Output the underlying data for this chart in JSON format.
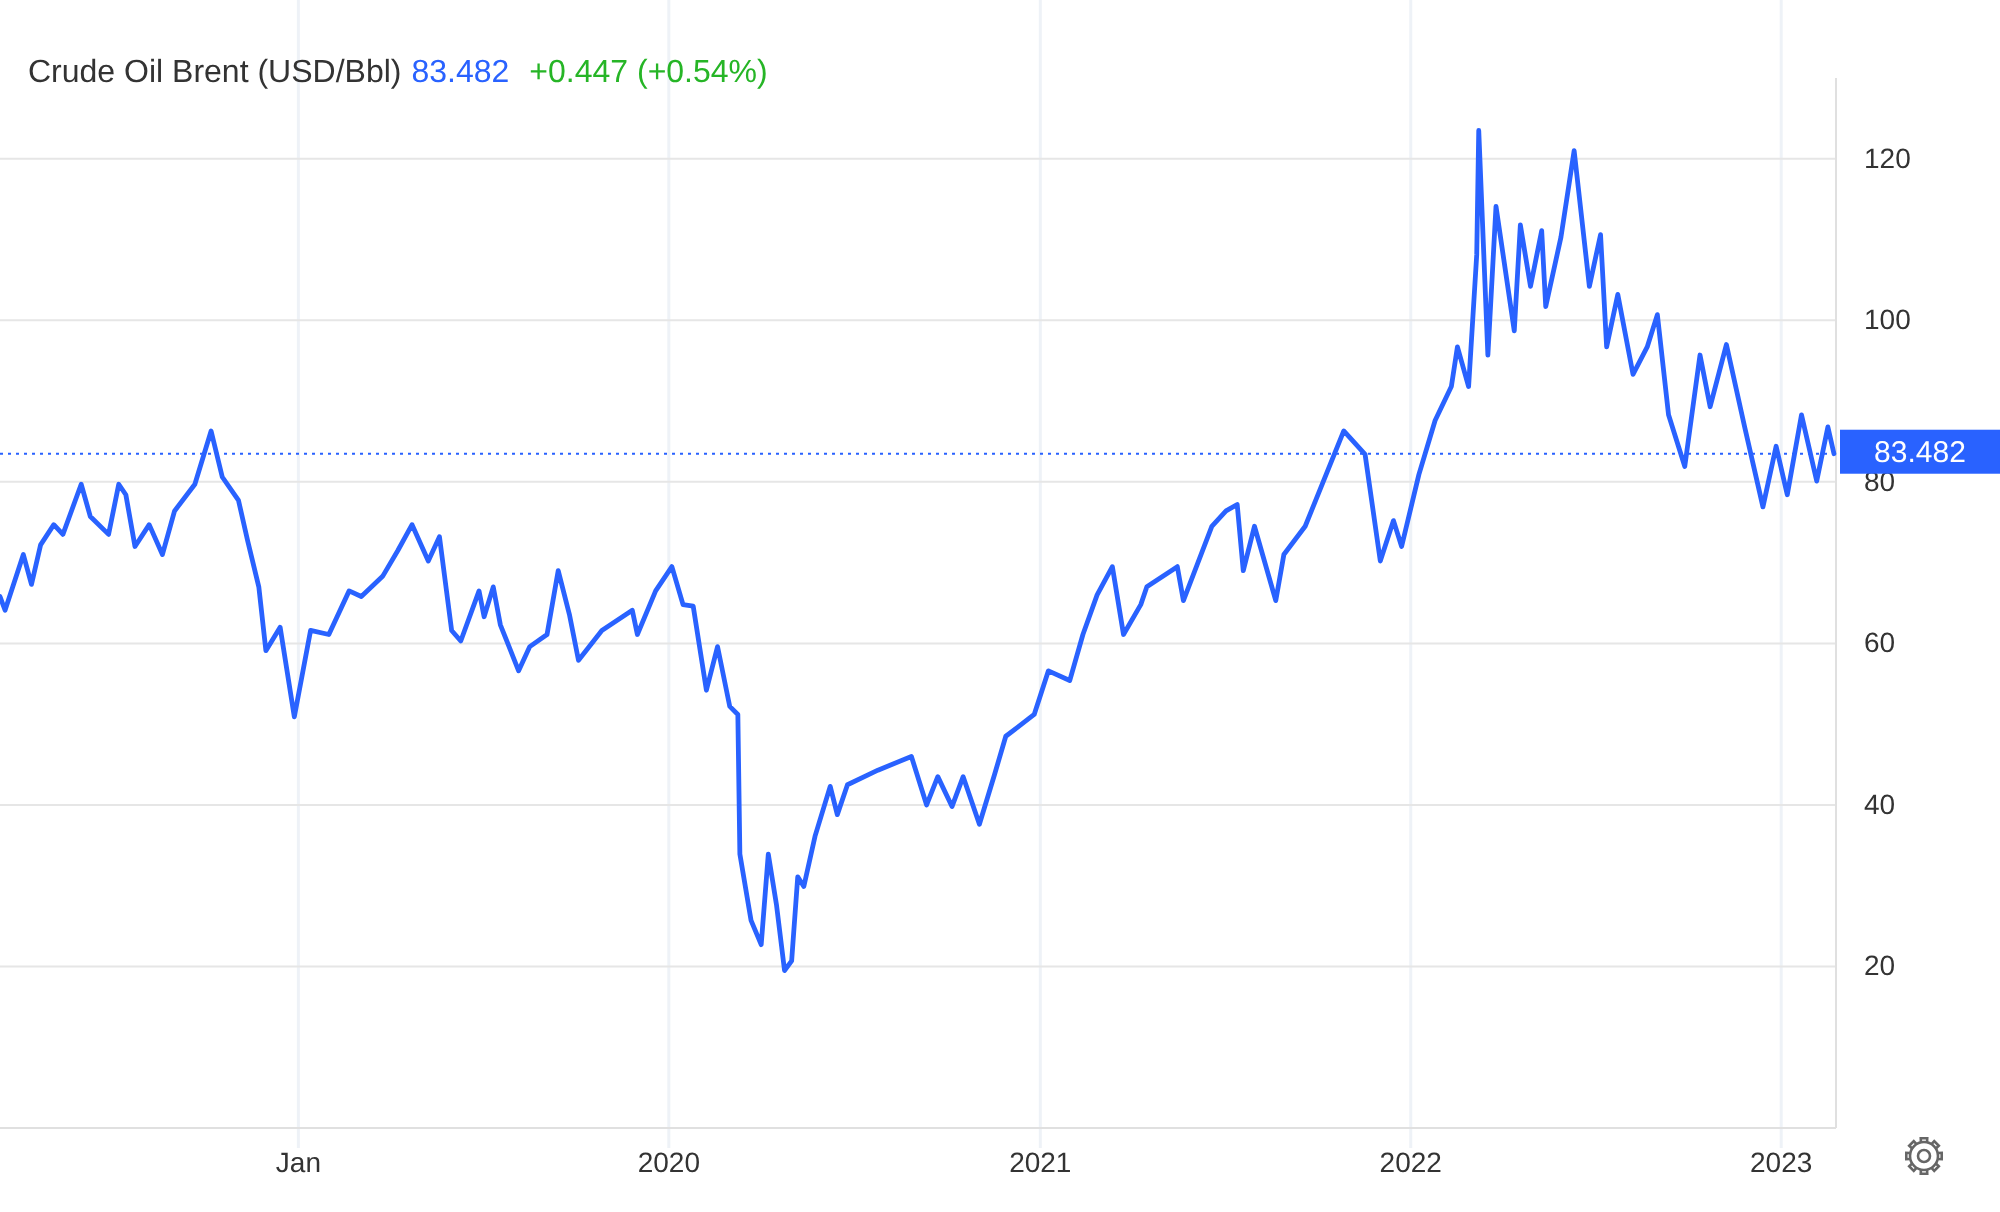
{
  "chart_data": {
    "type": "line",
    "title": "Crude Oil Brent (USD/Bbl)",
    "annotations": [
      "83.482",
      "+0.447 (+0.54%)"
    ],
    "x": [
      "2018-03-13",
      "2018-03-18",
      "2018-04-05",
      "2018-04-13",
      "2018-04-22",
      "2018-05-05",
      "2018-05-14",
      "2018-06-01",
      "2018-06-10",
      "2018-06-28",
      "2018-07-08",
      "2018-07-15",
      "2018-07-24",
      "2018-08-07",
      "2018-08-20",
      "2018-09-01",
      "2018-09-21",
      "2018-10-07",
      "2018-10-18",
      "2018-11-03",
      "2018-11-12",
      "2018-11-23",
      "2018-11-30",
      "2018-12-14",
      "2018-12-28",
      "2019-01-13",
      "2019-01-31",
      "2019-02-20",
      "2019-03-04",
      "2019-03-25",
      "2019-04-09",
      "2019-04-23",
      "2019-05-09",
      "2019-05-20",
      "2019-06-01",
      "2019-06-10",
      "2019-06-28",
      "2019-07-03",
      "2019-07-12",
      "2019-07-19",
      "2019-08-06",
      "2019-08-17",
      "2019-09-03",
      "2019-09-14",
      "2019-09-25",
      "2019-10-04",
      "2019-10-27",
      "2019-11-26",
      "2019-12-01",
      "2019-12-19",
      "2020-01-04",
      "2020-01-15",
      "2020-01-25",
      "2020-02-07",
      "2020-02-18",
      "2020-03-01",
      "2020-03-09",
      "2020-03-11",
      "2020-03-22",
      "2020-04-01",
      "2020-04-08",
      "2020-04-16",
      "2020-04-24",
      "2020-05-01",
      "2020-05-07",
      "2020-05-13",
      "2020-05-24",
      "2020-06-08",
      "2020-06-15",
      "2020-06-25",
      "2020-07-25",
      "2020-08-27",
      "2020-09-11",
      "2020-09-22",
      "2020-10-06",
      "2020-10-17",
      "2020-11-02",
      "2020-11-17",
      "2020-11-28",
      "2020-12-26",
      "2021-01-09",
      "2021-01-30",
      "2021-02-12",
      "2021-02-26",
      "2021-03-13",
      "2021-03-24",
      "2021-04-10",
      "2021-04-16",
      "2021-05-16",
      "2021-05-22",
      "2021-06-19",
      "2021-07-03",
      "2021-07-14",
      "2021-07-20",
      "2021-07-31",
      "2021-08-21",
      "2021-08-29",
      "2021-09-19",
      "2021-10-27",
      "2021-11-17",
      "2021-12-02",
      "2021-12-15",
      "2021-12-23",
      "2022-01-09",
      "2022-01-25",
      "2022-02-10",
      "2022-02-16",
      "2022-02-27",
      "2022-03-07",
      "2022-03-09",
      "2022-03-18",
      "2022-03-26",
      "2022-04-13",
      "2022-04-19",
      "2022-04-29",
      "2022-05-10",
      "2022-05-14",
      "2022-05-29",
      "2022-06-11",
      "2022-06-26",
      "2022-07-07",
      "2022-07-13",
      "2022-07-24",
      "2022-08-08",
      "2022-08-22",
      "2022-09-01",
      "2022-09-12",
      "2022-09-28",
      "2022-10-13",
      "2022-10-23",
      "2022-11-08",
      "2022-11-26",
      "2022-12-14",
      "2022-12-27",
      "2023-01-07",
      "2023-01-21",
      "2023-02-05",
      "2023-02-16",
      "2023-02-22"
    ],
    "series": [
      {
        "color": "#2962ff",
        "values": [
          65.8,
          64.1,
          71,
          67.3,
          72.2,
          74.7,
          73.5,
          79.7,
          75.7,
          73.5,
          79.7,
          78.4,
          72,
          74.7,
          71,
          76.4,
          79.7,
          86.3,
          80.6,
          77.7,
          72.7,
          67,
          59.1,
          62,
          50.9,
          61.6,
          61.1,
          66.5,
          65.8,
          68.3,
          71.5,
          74.7,
          70.2,
          73.2,
          61.6,
          60.3,
          66.5,
          63.3,
          67,
          62.3,
          56.6,
          59.6,
          61.1,
          69,
          63.6,
          57.9,
          61.6,
          64.1,
          61.1,
          66.5,
          69.5,
          64.8,
          64.6,
          54.2,
          59.6,
          52.2,
          51.2,
          33.9,
          25.7,
          22.7,
          33.9,
          27.7,
          19.5,
          20.7,
          31.1,
          29.9,
          36.1,
          42.3,
          38.8,
          42.5,
          44.3,
          46,
          40,
          43.5,
          39.8,
          43.5,
          37.6,
          43.8,
          48.5,
          51.2,
          56.6,
          55.4,
          61.1,
          66,
          69.5,
          61.1,
          64.8,
          67,
          69.5,
          65.3,
          74.5,
          76.4,
          77.2,
          69,
          74.5,
          65.3,
          71,
          74.5,
          86.3,
          83.4,
          70.2,
          75.2,
          72,
          80.9,
          87.6,
          91.8,
          96.7,
          91.8,
          108.1,
          123.5,
          95.7,
          114.1,
          98.7,
          111.8,
          104.2,
          111.1,
          101.7,
          110.3,
          121,
          104.2,
          110.6,
          96.7,
          103.2,
          93.3,
          96.7,
          100.7,
          88.3,
          81.9,
          95.7,
          89.3,
          97,
          86.8,
          76.9,
          84.4,
          78.4,
          88.3,
          80.1,
          86.8,
          83.482
        ]
      }
    ],
    "xlim": [
      "2018-03-13",
      "2023-02-24"
    ],
    "xticks": [
      {
        "value": "2019-01-01",
        "label": "Jan"
      },
      {
        "value": "2020-01-01",
        "label": "2020"
      },
      {
        "value": "2021-01-01",
        "label": "2021"
      },
      {
        "value": "2022-01-01",
        "label": "2022"
      },
      {
        "value": "2023-01-01",
        "label": "2023"
      }
    ],
    "ylim": [
      0,
      130
    ],
    "yticks": [
      20,
      40,
      60,
      80,
      100,
      120
    ],
    "grid": true,
    "marker": "none",
    "line_style": "solid",
    "ref_lines": [
      {
        "axis": "y",
        "value": 83.482,
        "label": "83.482",
        "color": "#2962ff",
        "line_style": "dotted"
      }
    ]
  }
}
